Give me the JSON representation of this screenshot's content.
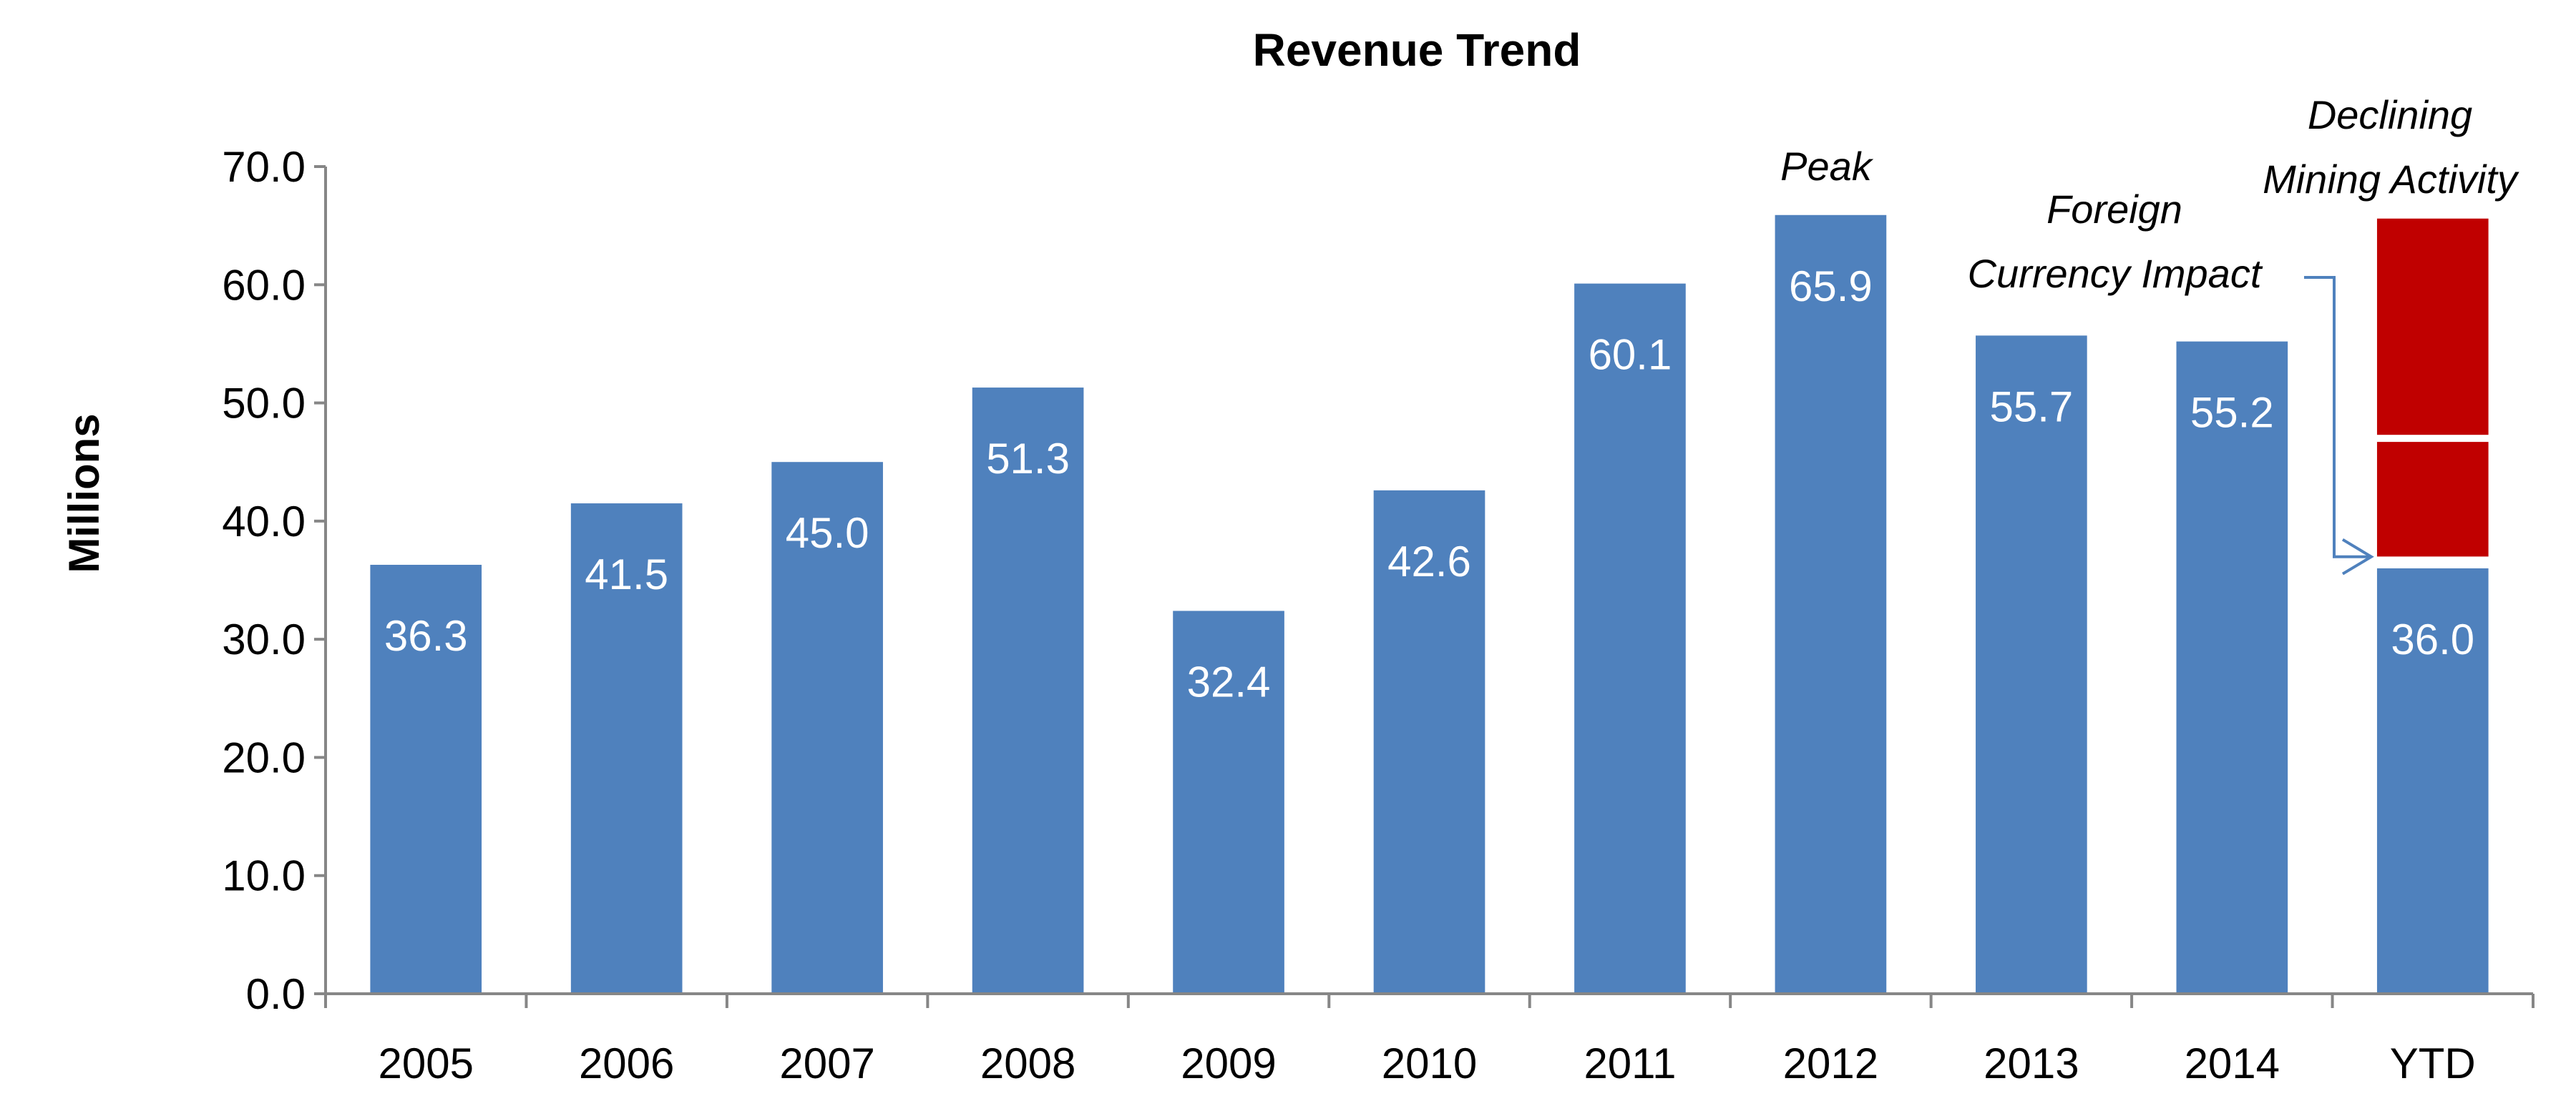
{
  "chart_data": {
    "type": "bar",
    "title": "Revenue Trend",
    "xlabel": "",
    "ylabel": "Millions",
    "ylim": [
      0,
      70
    ],
    "yticks": [
      0,
      10,
      20,
      30,
      40,
      50,
      60,
      70
    ],
    "ytick_labels": [
      "0.0",
      "10.0",
      "20.0",
      "30.0",
      "40.0",
      "50.0",
      "60.0",
      "70.0"
    ],
    "categories": [
      "2005",
      "2006",
      "2007",
      "2008",
      "2009",
      "2010",
      "2011",
      "2012",
      "2013",
      "2014",
      "YTD"
    ],
    "values": [
      36.3,
      41.5,
      45.0,
      51.3,
      32.4,
      42.6,
      60.1,
      65.9,
      55.7,
      55.2,
      36.0
    ],
    "value_labels": [
      "36.3",
      "41.5",
      "45.0",
      "51.3",
      "32.4",
      "42.6",
      "60.1",
      "65.9",
      "55.7",
      "55.2",
      "36.0"
    ],
    "stacked_extra": [
      {
        "category": "YTD",
        "from": 37.0,
        "to": 46.7
      },
      {
        "category": "YTD",
        "from": 47.3,
        "to": 65.6
      }
    ],
    "annotations": {
      "peak": "Peak",
      "foreign_line1": "Foreign",
      "foreign_line2": "Currency Impact",
      "mining_line1": "Declining",
      "mining_line2": "Mining Activity"
    },
    "colors": {
      "bar": "#4F81BD",
      "extra": "#C00000",
      "arrow": "#4F81BD",
      "axis": "#868686"
    },
    "grid": false,
    "legend": "none"
  }
}
